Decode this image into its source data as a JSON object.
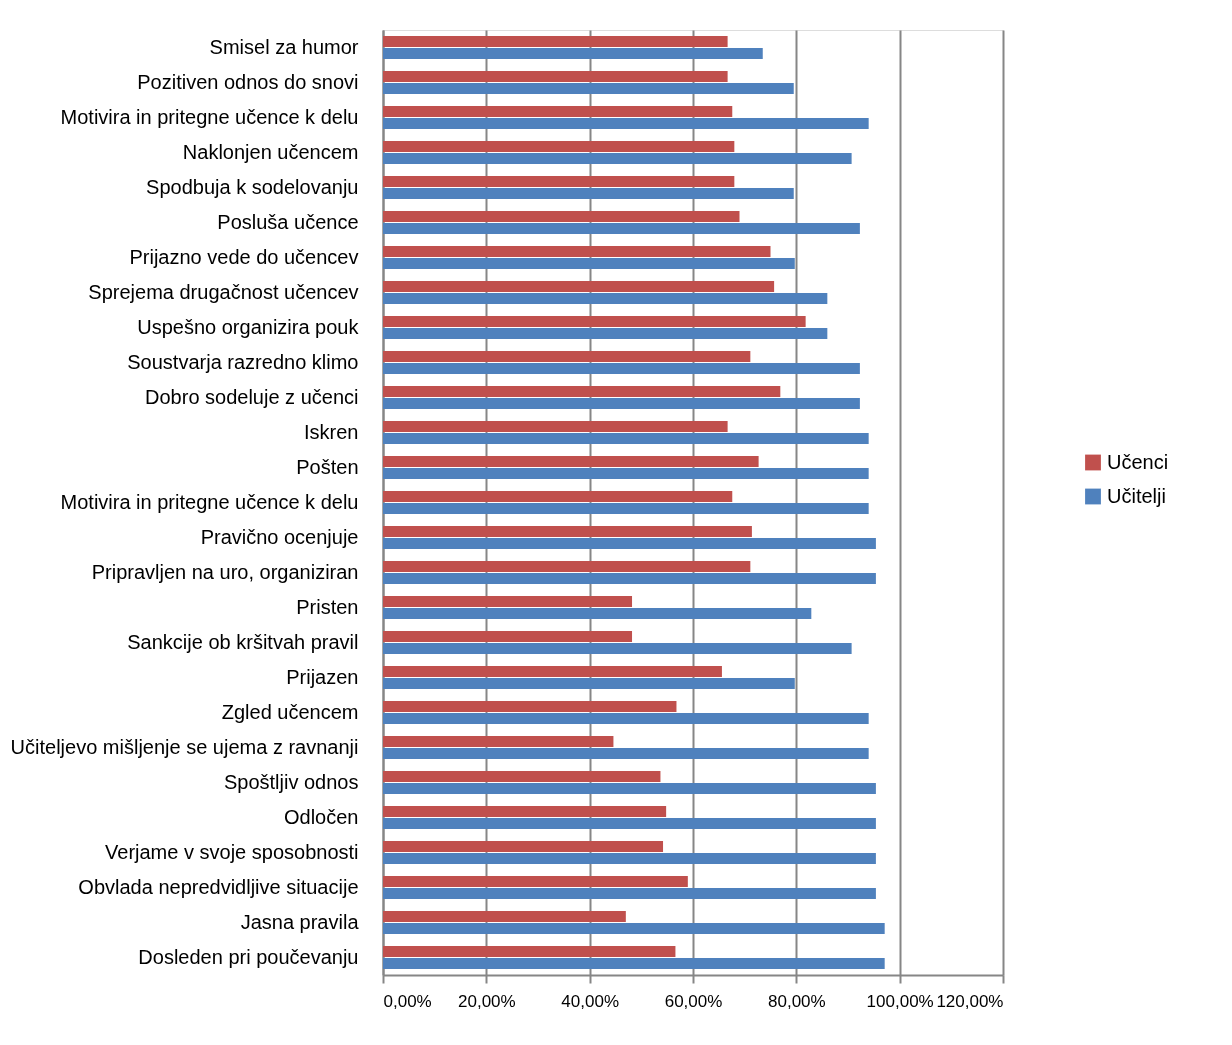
{
  "chart_data": {
    "type": "bar",
    "orientation": "horizontal",
    "categories": [
      "Smisel za humor",
      "Pozitiven odnos do snovi",
      "Motivira in pritegne učence k delu",
      "Naklonjen učencem",
      "Spodbuja k sodelovanju",
      "Posluša učence",
      "Prijazno vede do učencev",
      "Sprejema drugačnost učencev",
      "Uspešno organizira pouk",
      "Soustvarja razredno klimo",
      "Dobro sodeluje z učenci",
      "Iskren",
      "Pošten",
      "Motivira in pritegne učence k delu",
      "Pravično ocenjuje",
      "Pripravljen na uro, organiziran",
      "Pristen",
      "Sankcije ob kršitvah pravil",
      "Prijazen",
      "Zgled učencem",
      "Učiteljevo mišljenje se ujema z ravnanji",
      "Spoštljiv odnos",
      "Odločen",
      "Verjame v svoje sposobnosti",
      "Obvlada nepredvidljive situacije",
      "Jasna pravila",
      "Dosleden pri poučevanju"
    ],
    "series": [
      {
        "name": "Učenci",
        "color": "#c0504d",
        "values": [
          66.7,
          66.7,
          67.6,
          68,
          68,
          69,
          75,
          75.7,
          81.8,
          71.1,
          76.9,
          66.7,
          72.7,
          67.6,
          71.4,
          71.1,
          48.2,
          48.2,
          65.6,
          56.8,
          44.6,
          53.7,
          54.8,
          54.2,
          59,
          47,
          56.6
        ]
      },
      {
        "name": "Učitelji",
        "color": "#4f81bd",
        "values": [
          73.5,
          79.5,
          94,
          90.7,
          79.5,
          92.3,
          79.7,
          86,
          86,
          92.3,
          92.3,
          94,
          94,
          94,
          95.4,
          95.4,
          82.9,
          90.7,
          79.7,
          94,
          94,
          95.4,
          95.4,
          95.4,
          95.4,
          97.1,
          97.1
        ]
      }
    ],
    "xlim": [
      0,
      120
    ],
    "xticks": [
      {
        "value": 0,
        "label": "0,00%"
      },
      {
        "value": 20,
        "label": "20,00%"
      },
      {
        "value": 40,
        "label": "40,00%"
      },
      {
        "value": 60,
        "label": "60,00%"
      },
      {
        "value": 80,
        "label": "80,00%"
      },
      {
        "value": 100,
        "label": "100,00%"
      },
      {
        "value": 120,
        "label": "120,00%"
      }
    ],
    "grid": "x",
    "legend": "right"
  }
}
